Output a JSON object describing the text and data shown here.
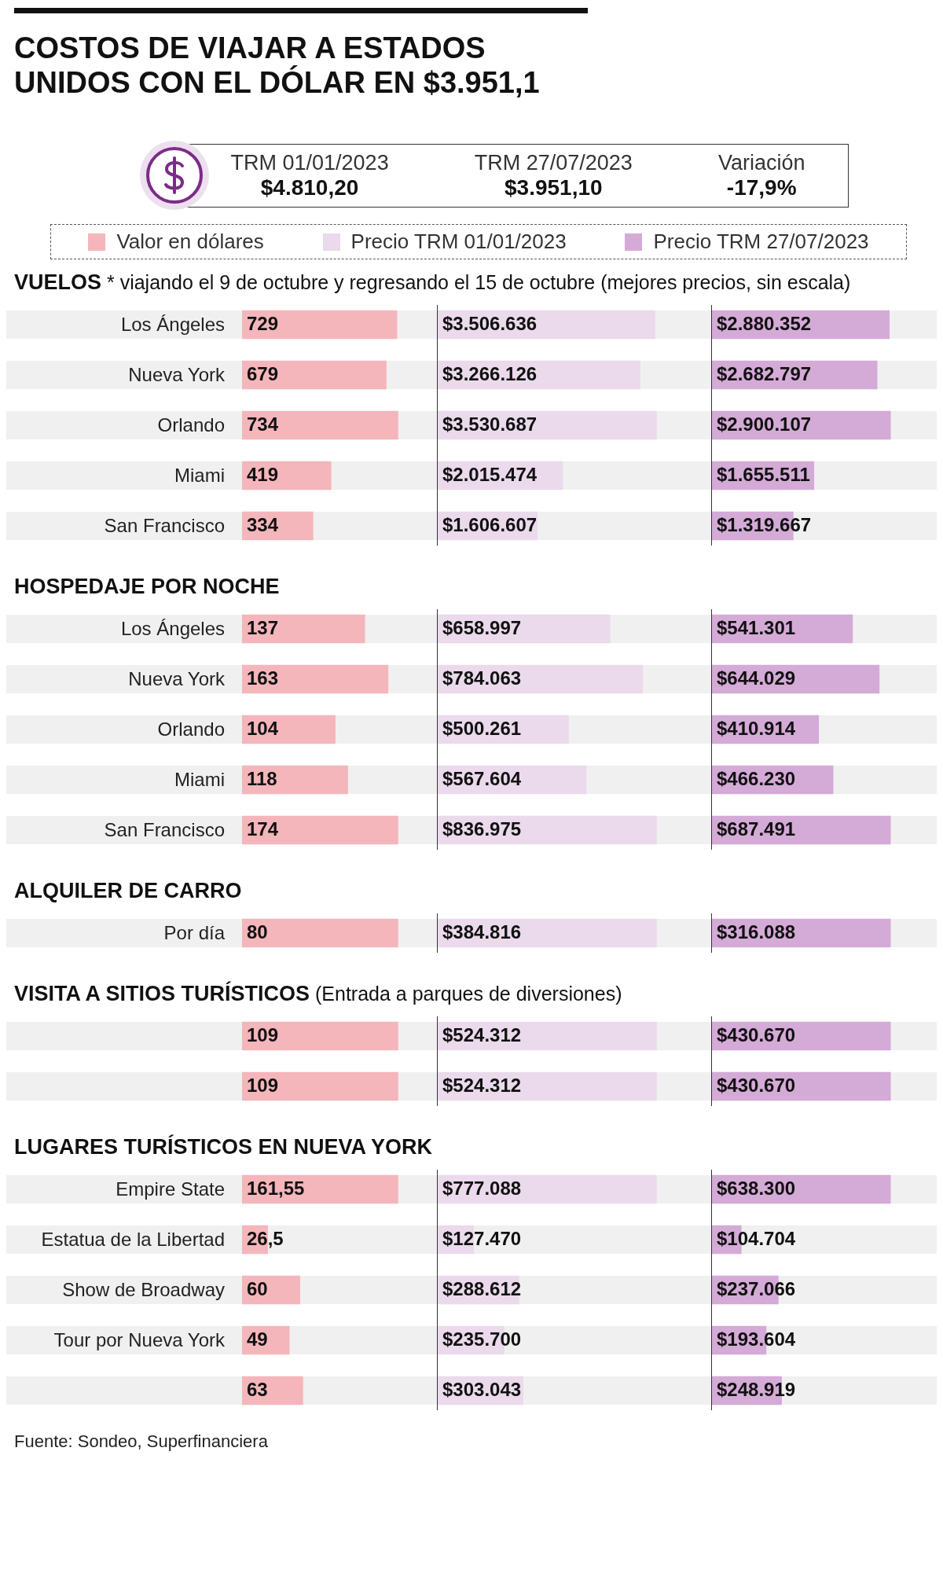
{
  "chart_data": [
    {
      "type": "other",
      "title": "COSTOS DE VIAJAR A ESTADOS UNIDOS CON EL DÓLAR EN $3.951,1",
      "annotations": [
        "TRM 01/01/2023",
        "$4.810,20",
        "TRM 27/07/2023",
        "$3.951,10",
        "Variación",
        "-17,9%"
      ]
    },
    {
      "type": "bar",
      "orientation": "horizontal",
      "title": "VUELOS",
      "subtitle": "* viajando el 9 de octubre y regresando el 15 de octubre (mejores precios, sin escala)",
      "legend": "top",
      "tick_labels": "y",
      "categories": [
        "Los Ángeles",
        "Nueva York",
        "Orlando",
        "Miami",
        "San Francisco"
      ],
      "series": [
        {
          "name": "Valor en dólares",
          "color": "#f4b6bb",
          "values": [
            729,
            679,
            734,
            419,
            334
          ],
          "value_labels": [
            "729",
            "679",
            "734",
            "419",
            "334"
          ]
        }
      ]
    },
    {
      "type": "bar",
      "orientation": "horizontal",
      "legend": "top",
      "tick_labels": false,
      "categories": [
        "Los Ángeles",
        "Nueva York",
        "Orlando",
        "Miami",
        "San Francisco"
      ],
      "series": [
        {
          "name": "Precio TRM 01/01/2023",
          "color": "#eadaeb",
          "values": [
            3506636,
            3266126,
            3530687,
            2015474,
            1606607
          ],
          "value_labels": [
            "$3.506.636",
            "$3.266.126",
            "$3.530.687",
            "$2.015.474",
            "$1.606.607"
          ]
        }
      ]
    },
    {
      "type": "bar",
      "orientation": "horizontal",
      "legend": "top",
      "tick_labels": false,
      "categories": [
        "Los Ángeles",
        "Nueva York",
        "Orlando",
        "Miami",
        "San Francisco"
      ],
      "series": [
        {
          "name": "Precio TRM 27/07/2023",
          "color": "#d4aad7",
          "values": [
            2880352,
            2682797,
            2900107,
            1655511,
            1319667
          ],
          "value_labels": [
            "$2.880.352",
            "$2.682.797",
            "$2.900.107",
            "$1.655.511",
            "$1.319.667"
          ]
        }
      ]
    },
    {
      "type": "bar",
      "orientation": "horizontal",
      "title": "HOSPEDAJE POR NOCHE",
      "tick_labels": "y",
      "categories": [
        "Los Ángeles",
        "Nueva York",
        "Orlando",
        "Miami",
        "San Francisco"
      ],
      "series": [
        {
          "color": "#f4b6bb",
          "values": [
            137,
            163,
            104,
            118,
            174
          ],
          "value_labels": [
            "137",
            "163",
            "104",
            "118",
            "174"
          ]
        }
      ]
    },
    {
      "type": "bar",
      "orientation": "horizontal",
      "tick_labels": false,
      "categories": [
        "Los Ángeles",
        "Nueva York",
        "Orlando",
        "Miami",
        "San Francisco"
      ],
      "series": [
        {
          "color": "#eadaeb",
          "values": [
            658997,
            784063,
            500261,
            567604,
            836975
          ],
          "value_labels": [
            "$658.997",
            "$784.063",
            "$500.261",
            "$567.604",
            "$836.975"
          ]
        }
      ]
    },
    {
      "type": "bar",
      "orientation": "horizontal",
      "tick_labels": false,
      "categories": [
        "Los Ángeles",
        "Nueva York",
        "Orlando",
        "Miami",
        "San Francisco"
      ],
      "series": [
        {
          "color": "#d4aad7",
          "values": [
            541301,
            644029,
            410914,
            466230,
            687491
          ],
          "value_labels": [
            "$541.301",
            "$644.029",
            "$410.914",
            "$466.230",
            "$687.491"
          ]
        }
      ]
    },
    {
      "type": "bar",
      "orientation": "horizontal",
      "title": "ALQUILER DE CARRO",
      "tick_labels": "y",
      "categories": [
        "Por día"
      ],
      "series": [
        {
          "color": "#f4b6bb",
          "values": [
            80
          ],
          "value_labels": [
            "80"
          ]
        }
      ]
    },
    {
      "type": "bar",
      "orientation": "horizontal",
      "tick_labels": false,
      "categories": [
        "Por día"
      ],
      "series": [
        {
          "color": "#eadaeb",
          "values": [
            384816
          ],
          "value_labels": [
            "$384.816"
          ]
        }
      ]
    },
    {
      "type": "bar",
      "orientation": "horizontal",
      "tick_labels": false,
      "categories": [
        "Por día"
      ],
      "series": [
        {
          "color": "#d4aad7",
          "values": [
            316088
          ],
          "value_labels": [
            "$316.088"
          ]
        }
      ]
    },
    {
      "type": "bar",
      "orientation": "horizontal",
      "title": "VISITA A SITIOS TURÍSTICOS",
      "subtitle": "(Entrada a parques de diversiones)",
      "tick_labels": "y",
      "categories": [
        null,
        null
      ],
      "series": [
        {
          "color": "#f4b6bb",
          "values": [
            109,
            109
          ],
          "value_labels": [
            "109",
            "109"
          ]
        }
      ]
    },
    {
      "type": "bar",
      "orientation": "horizontal",
      "tick_labels": false,
      "categories": [
        null,
        null
      ],
      "series": [
        {
          "color": "#eadaeb",
          "values": [
            524312,
            524312
          ],
          "value_labels": [
            "$524.312",
            "$524.312"
          ]
        }
      ]
    },
    {
      "type": "bar",
      "orientation": "horizontal",
      "tick_labels": false,
      "categories": [
        null,
        null
      ],
      "series": [
        {
          "color": "#d4aad7",
          "values": [
            430670,
            430670
          ],
          "value_labels": [
            "$430.670",
            "$430.670"
          ]
        }
      ]
    },
    {
      "type": "bar",
      "orientation": "horizontal",
      "title": "LUGARES TURÍSTICOS EN NUEVA YORK",
      "tick_labels": "y",
      "categories": [
        "Empire State",
        "Estatua de la Libertad",
        "Show de Broadway",
        "Tour por Nueva York",
        null
      ],
      "series": [
        {
          "color": "#f4b6bb",
          "values": [
            161.55,
            26.5,
            60,
            49,
            63
          ],
          "value_labels": [
            "161,55",
            "26,5",
            "60",
            "49",
            "63"
          ]
        }
      ]
    },
    {
      "type": "bar",
      "orientation": "horizontal",
      "tick_labels": false,
      "categories": [
        "Empire State",
        "Estatua de la Libertad",
        "Show de Broadway",
        "Tour por Nueva York",
        null
      ],
      "series": [
        {
          "color": "#eadaeb",
          "values": [
            777088,
            127470,
            288612,
            235700,
            303043
          ],
          "value_labels": [
            "$777.088",
            "$127.470",
            "$288.612",
            "$235.700",
            "$303.043"
          ]
        }
      ]
    },
    {
      "type": "bar",
      "orientation": "horizontal",
      "tick_labels": false,
      "categories": [
        "Empire State",
        "Estatua de la Libertad",
        "Show de Broadway",
        "Tour por Nueva York",
        null
      ],
      "annotations": [
        "Fuente: Sondeo, Superfinanciera"
      ],
      "series": [
        {
          "color": "#d4aad7",
          "values": [
            638300,
            104704,
            237066,
            193604,
            248919
          ],
          "value_labels": [
            "$638.300",
            "$104.704",
            "$237.066",
            "$193.604",
            "$248.919"
          ]
        }
      ]
    }
  ]
}
